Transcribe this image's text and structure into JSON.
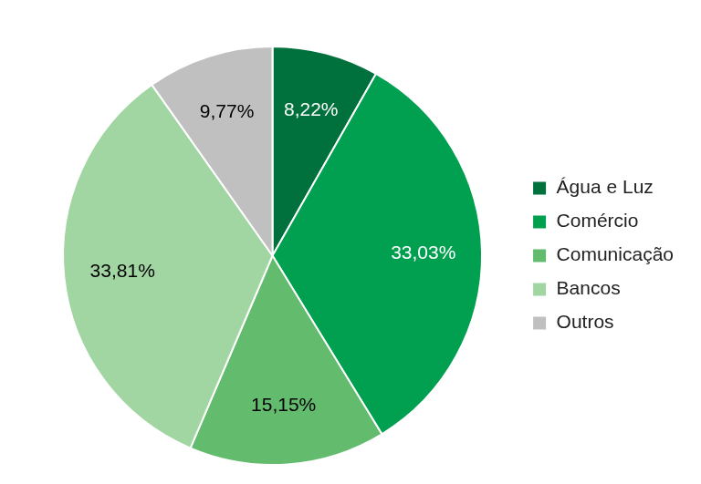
{
  "chart_data": {
    "type": "pie",
    "categories": [
      "Água e Luz",
      "Comércio",
      "Comunicação",
      "Bancos",
      "Outros"
    ],
    "values": [
      8.22,
      33.03,
      15.15,
      33.81,
      9.77
    ],
    "value_labels": [
      "8,22%",
      "33,03%",
      "15,15%",
      "33,81%",
      "9,77%"
    ],
    "colors": [
      "#00703c",
      "#00a050",
      "#63bb6d",
      "#a1d6a3",
      "#c0c0c0"
    ],
    "data_labels": true,
    "legend": "right"
  }
}
